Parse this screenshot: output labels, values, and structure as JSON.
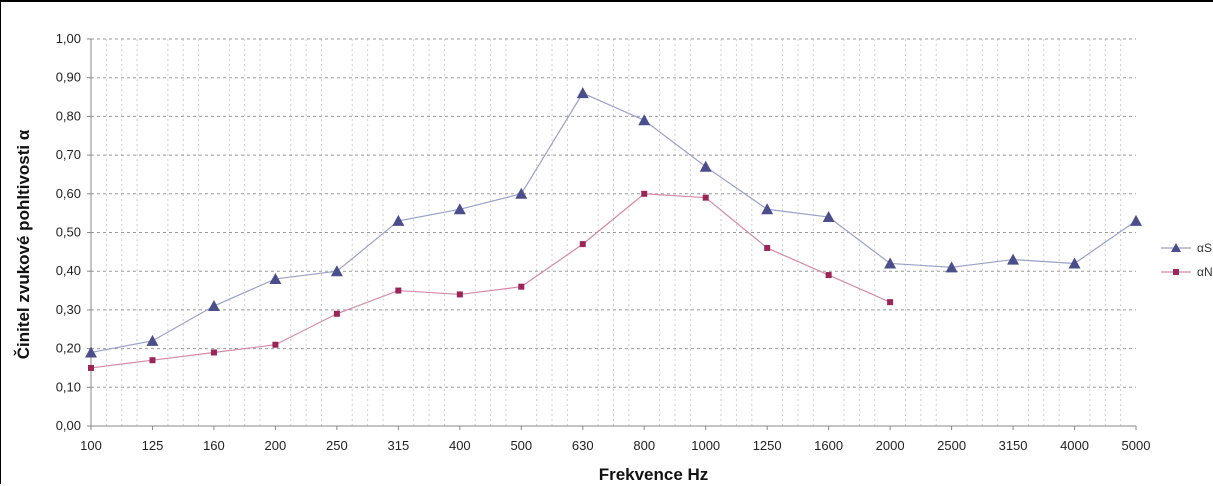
{
  "chart_data": {
    "type": "line",
    "title": "",
    "xlabel": "Frekvence Hz",
    "ylabel": "Činitel zvukové pohltivosti α",
    "categories": [
      "100",
      "125",
      "160",
      "200",
      "250",
      "315",
      "400",
      "500",
      "630",
      "800",
      "1000",
      "1250",
      "1600",
      "2000",
      "2500",
      "3150",
      "4000",
      "5000"
    ],
    "ylim": [
      0,
      1
    ],
    "yticks": [
      "0,00",
      "0,10",
      "0,20",
      "0,30",
      "0,40",
      "0,50",
      "0,60",
      "0,70",
      "0,80",
      "0,90",
      "1,00"
    ],
    "grid": true,
    "legend_position": "right",
    "series": [
      {
        "name": "αS",
        "color": "#9aa0c8",
        "marker_color": "#4a4f8c",
        "marker": "triangle",
        "values": [
          0.19,
          0.22,
          0.31,
          0.38,
          0.4,
          0.53,
          0.56,
          0.6,
          0.86,
          0.79,
          0.67,
          0.56,
          0.54,
          0.42,
          0.41,
          0.43,
          0.42,
          0.53
        ]
      },
      {
        "name": "αN",
        "color": "#d48aa8",
        "marker_color": "#9b2458",
        "marker": "square",
        "values": [
          0.15,
          0.17,
          0.19,
          0.21,
          0.29,
          0.35,
          0.34,
          0.36,
          0.47,
          0.6,
          0.59,
          0.46,
          0.39,
          0.32,
          null,
          null,
          null,
          null
        ]
      }
    ]
  }
}
